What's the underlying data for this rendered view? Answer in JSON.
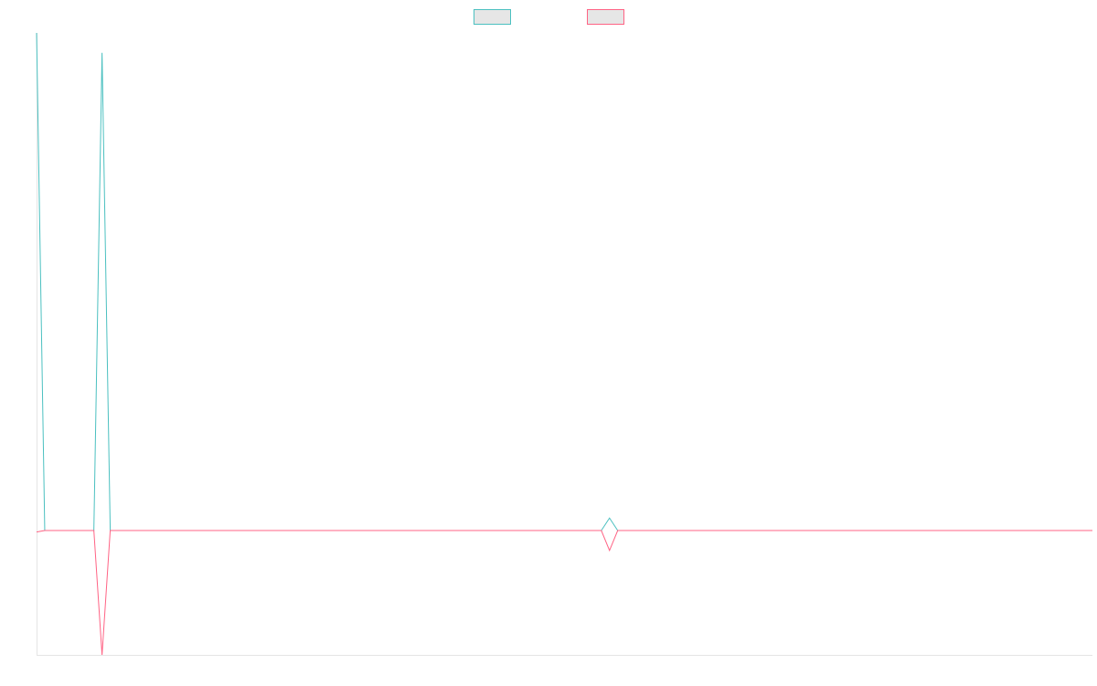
{
  "chart_data": {
    "type": "line",
    "x": [
      0,
      1,
      7,
      8,
      9,
      69,
      70,
      71,
      129
    ],
    "series": [
      {
        "name": "",
        "color": "#4bc0c0",
        "values": [
          100,
          0,
          0,
          96,
          0,
          0,
          2.5,
          0,
          0
        ]
      },
      {
        "name": "",
        "color": "#ff6384",
        "values": [
          -0.3,
          0,
          0,
          -25,
          0,
          0,
          -4,
          0,
          0
        ]
      }
    ],
    "xlim": [
      0,
      129
    ],
    "ylim": [
      -25,
      100
    ],
    "grid": false,
    "legend": "top-center"
  }
}
